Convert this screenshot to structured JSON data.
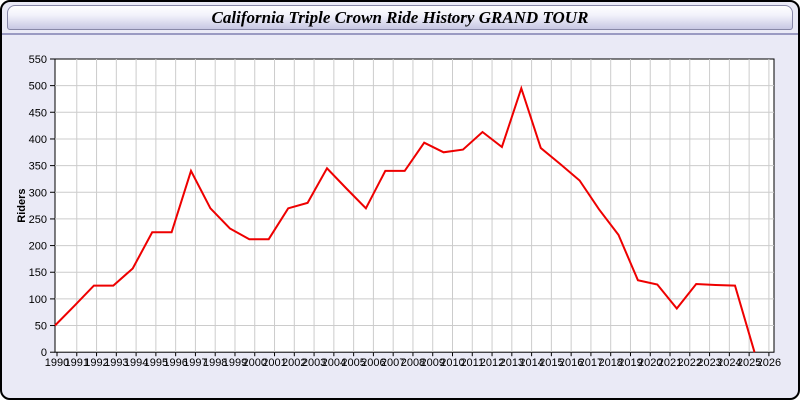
{
  "window": {
    "title": "California Triple Crown Ride History GRAND TOUR"
  },
  "chart_data": {
    "type": "line",
    "title": "California Triple Crown Ride History GRAND TOUR",
    "xlabel": "",
    "ylabel": "Riders",
    "x": [
      1990,
      1991,
      1992,
      1993,
      1994,
      1995,
      1996,
      1997,
      1998,
      1999,
      2000,
      2001,
      2002,
      2003,
      2004,
      2005,
      2006,
      2007,
      2008,
      2009,
      2010,
      2011,
      2012,
      2013,
      2014,
      2015,
      2016,
      2017,
      2018,
      2019,
      2020,
      2021,
      2022,
      2023,
      2024,
      2025,
      2026
    ],
    "series": [
      {
        "name": "Riders",
        "color": "#ee0000",
        "values": [
          50,
          87,
          125,
          125,
          157,
          225,
          225,
          340,
          270,
          232,
          212,
          212,
          270,
          280,
          345,
          307,
          270,
          340,
          340,
          393,
          375,
          380,
          413,
          385,
          495,
          383,
          353,
          322,
          268,
          220,
          135,
          127,
          82,
          128,
          126,
          125,
          0
        ]
      }
    ],
    "ylim": [
      0,
      550
    ],
    "ytick_step": 50,
    "yticks": [
      0,
      50,
      100,
      150,
      200,
      250,
      300,
      350,
      400,
      450,
      500,
      550
    ],
    "grid": true,
    "legend": "none",
    "plot_bg": "#ffffff",
    "grid_color": "#cccccc",
    "axis_color": "#000000"
  },
  "colors": {
    "window_bg": "#eaeaf6",
    "window_border": "#000000",
    "titlebar_gradient_top": "#ffffff",
    "titlebar_gradient_bottom": "#c7c7e3",
    "separator": "#9a9ac2",
    "line": "#ee0000"
  }
}
